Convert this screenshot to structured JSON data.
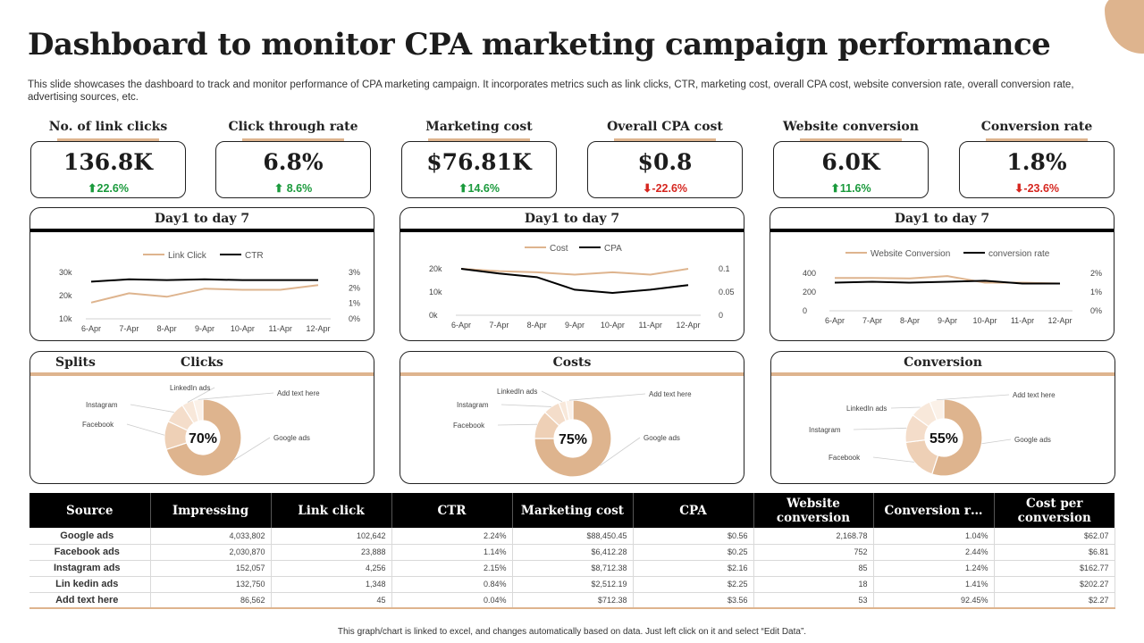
{
  "title": "Dashboard to monitor CPA marketing campaign performance",
  "subtitle": "This slide showcases the dashboard to track and monitor performance of CPA marketing campaign. It incorporates metrics such as link clicks, CTR, marketing cost, overall CPA cost, website conversion rate, overall conversion rate, advertising sources, etc.",
  "colors": {
    "accent": "#deb48e",
    "up": "#1a9a3c",
    "down": "#d6261f",
    "line_dark": "#000000"
  },
  "kpis": [
    {
      "label": "No. of link clicks",
      "value": "136.8K",
      "change": "⬆22.6%",
      "direction": "up"
    },
    {
      "label": "Click through rate",
      "value": "6.8%",
      "change": "⬆ 8.6%",
      "direction": "up"
    },
    {
      "label": "Marketing cost",
      "value": "$76.81K",
      "change": "⬆14.6%",
      "direction": "up"
    },
    {
      "label": "Overall CPA cost",
      "value": "$0.8",
      "change": "⬇-22.6%",
      "direction": "down"
    },
    {
      "label": "Website conversion",
      "value": "6.0K",
      "change": "⬆11.6%",
      "direction": "up"
    },
    {
      "label": "Conversion rate",
      "value": "1.8%",
      "change": "⬇-23.6%",
      "direction": "down"
    }
  ],
  "chart_data": [
    {
      "type": "line",
      "title": "Day1 to day 7",
      "categories": [
        "6-Apr",
        "7-Apr",
        "8-Apr",
        "9-Apr",
        "10-Apr",
        "11-Apr",
        "12-Apr"
      ],
      "left_ticks": [
        "30k",
        "20k",
        "10k"
      ],
      "right_ticks": [
        "3%",
        "2%",
        "1%",
        "0%"
      ],
      "left_range": [
        10000,
        30000
      ],
      "right_range": [
        0,
        3
      ],
      "series": [
        {
          "name": "Link Click",
          "axis": "left",
          "color": "#deb48e",
          "values": [
            17000,
            21000,
            19500,
            23000,
            22500,
            22500,
            24500
          ]
        },
        {
          "name": "CTR",
          "axis": "right",
          "color": "#000000",
          "values": [
            2.4,
            2.55,
            2.5,
            2.55,
            2.5,
            2.5,
            2.5
          ]
        }
      ]
    },
    {
      "type": "line",
      "title": "Day1 to day 7",
      "categories": [
        "6-Apr",
        "7-Apr",
        "8-Apr",
        "9-Apr",
        "10-Apr",
        "11-Apr",
        "12-Apr"
      ],
      "left_ticks": [
        "20k",
        "10k",
        "0k"
      ],
      "right_ticks": [
        "0.1",
        "0.05",
        "0"
      ],
      "left_range": [
        0,
        20000
      ],
      "right_range": [
        0,
        0.1
      ],
      "series": [
        {
          "name": "Cost",
          "axis": "left",
          "color": "#deb48e",
          "values": [
            20000,
            19000,
            18500,
            17500,
            18500,
            17500,
            20000
          ]
        },
        {
          "name": "CPA",
          "axis": "right",
          "color": "#000000",
          "values": [
            0.1,
            0.09,
            0.082,
            0.055,
            0.048,
            0.055,
            0.065
          ]
        }
      ]
    },
    {
      "type": "line",
      "title": "Day1 to day 7",
      "categories": [
        "6-Apr",
        "7-Apr",
        "8-Apr",
        "9-Apr",
        "10-Apr",
        "11-Apr",
        "12-Apr"
      ],
      "left_ticks": [
        "400",
        "200",
        "0"
      ],
      "right_ticks": [
        "2%",
        "1%",
        "0%"
      ],
      "left_range": [
        0,
        400
      ],
      "right_range": [
        0,
        2
      ],
      "series": [
        {
          "name": "Website Conversion",
          "axis": "left",
          "color": "#deb48e",
          "values": [
            350,
            350,
            345,
            370,
            300,
            300,
            290
          ]
        },
        {
          "name": "conversion rate",
          "axis": "right",
          "color": "#000000",
          "values": [
            1.5,
            1.55,
            1.5,
            1.55,
            1.6,
            1.45,
            1.45
          ]
        }
      ]
    },
    {
      "type": "pie",
      "title": "Clicks",
      "side_label": "Splits",
      "center_label": "70%",
      "labels": [
        "Google ads",
        "Facebook",
        "Instagram",
        "LinkedIn ads",
        "Add text here"
      ],
      "values": [
        70,
        12,
        9,
        5,
        4
      ]
    },
    {
      "type": "pie",
      "title": "Costs",
      "center_label": "75%",
      "labels": [
        "Google ads",
        "Facebook",
        "Instagram",
        "LinkedIn ads",
        "Add text here"
      ],
      "values": [
        75,
        12,
        7,
        3,
        3
      ]
    },
    {
      "type": "pie",
      "title": "Conversion",
      "center_label": "55%",
      "labels": [
        "Google ads",
        "Facebook",
        "Instagram",
        "LinkedIn ads",
        "Add text here"
      ],
      "values": [
        55,
        18,
        12,
        9,
        6
      ]
    }
  ],
  "table": {
    "headers": [
      "Source",
      "Impressing",
      "Link click",
      "CTR",
      "Marketing cost",
      "CPA",
      "Website conversion",
      "Conversion r…",
      "Cost per conversion"
    ],
    "rows": [
      [
        "Google ads",
        "4,033,802",
        "102,642",
        "2.24%",
        "$88,450.45",
        "$0.56",
        "2,168.78",
        "1.04%",
        "$62.07"
      ],
      [
        "Facebook ads",
        "2,030,870",
        "23,888",
        "1.14%",
        "$6,412.28",
        "$0.25",
        "752",
        "2.44%",
        "$6.81"
      ],
      [
        "Instagram ads",
        "152,057",
        "4,256",
        "2.15%",
        "$8,712.38",
        "$2.16",
        "85",
        "1.24%",
        "$162.77"
      ],
      [
        "Lin kedin ads",
        "132,750",
        "1,348",
        "0.84%",
        "$2,512.19",
        "$2.25",
        "18",
        "1.41%",
        "$202.27"
      ],
      [
        "Add text here",
        "86,562",
        "45",
        "0.04%",
        "$712.38",
        "$3.56",
        "53",
        "92.45%",
        "$2.27"
      ]
    ]
  },
  "footer": "This graph/chart is linked to excel, and changes automatically based on data. Just left click on it and select “Edit Data”."
}
